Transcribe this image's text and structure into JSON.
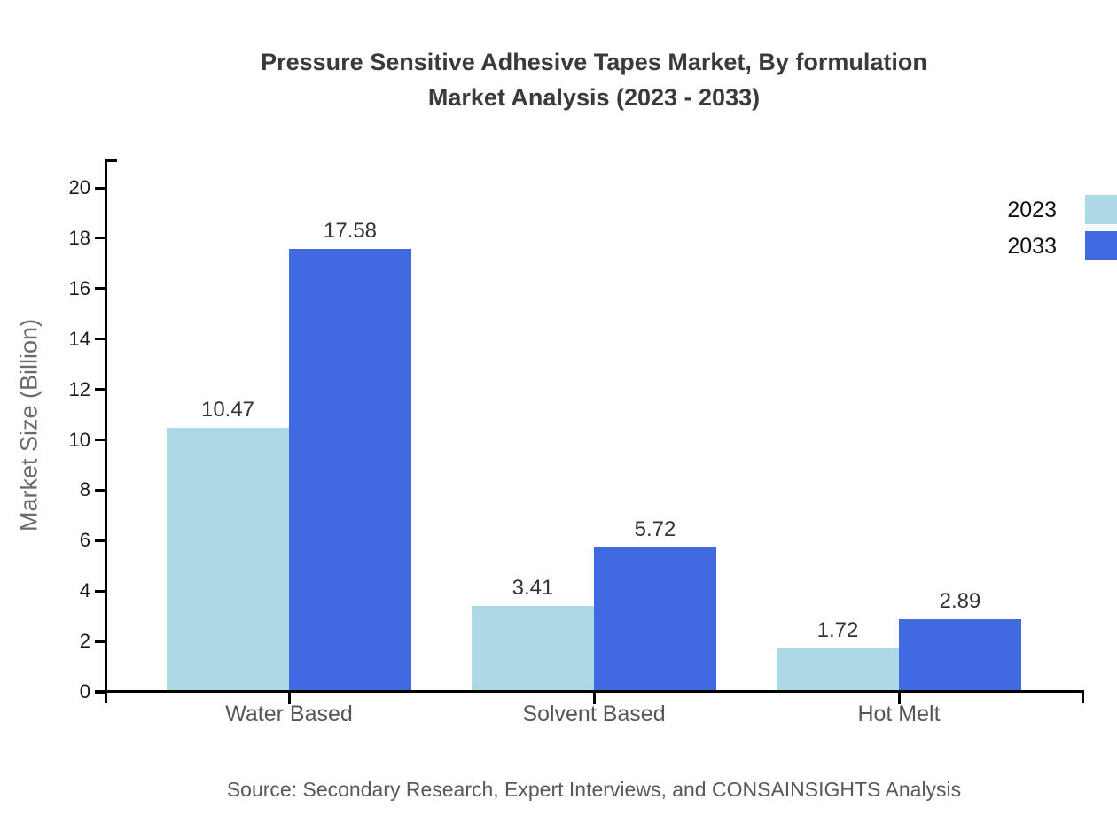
{
  "title": {
    "line1": "Pressure Sensitive Adhesive Tapes Market, By formulation",
    "line2": "Market Analysis (2023 - 2033)"
  },
  "source": "Source: Secondary Research, Expert Interviews, and CONSAINSIGHTS Analysis",
  "chart_data": {
    "type": "bar",
    "categories": [
      "Water Based",
      "Solvent Based",
      "Hot Melt"
    ],
    "series": [
      {
        "name": "2023",
        "color": "#ADD8E6",
        "values": [
          10.47,
          3.41,
          1.72
        ]
      },
      {
        "name": "2033",
        "color": "#4169E1",
        "values": [
          17.58,
          5.72,
          2.89
        ]
      }
    ],
    "ylabel": "Market Size (Billion)",
    "ylim": [
      0,
      20
    ],
    "ytick_step": 2,
    "grid": false,
    "legend_position": "top-right",
    "value_labels": true,
    "value_label_decimals": 2
  }
}
